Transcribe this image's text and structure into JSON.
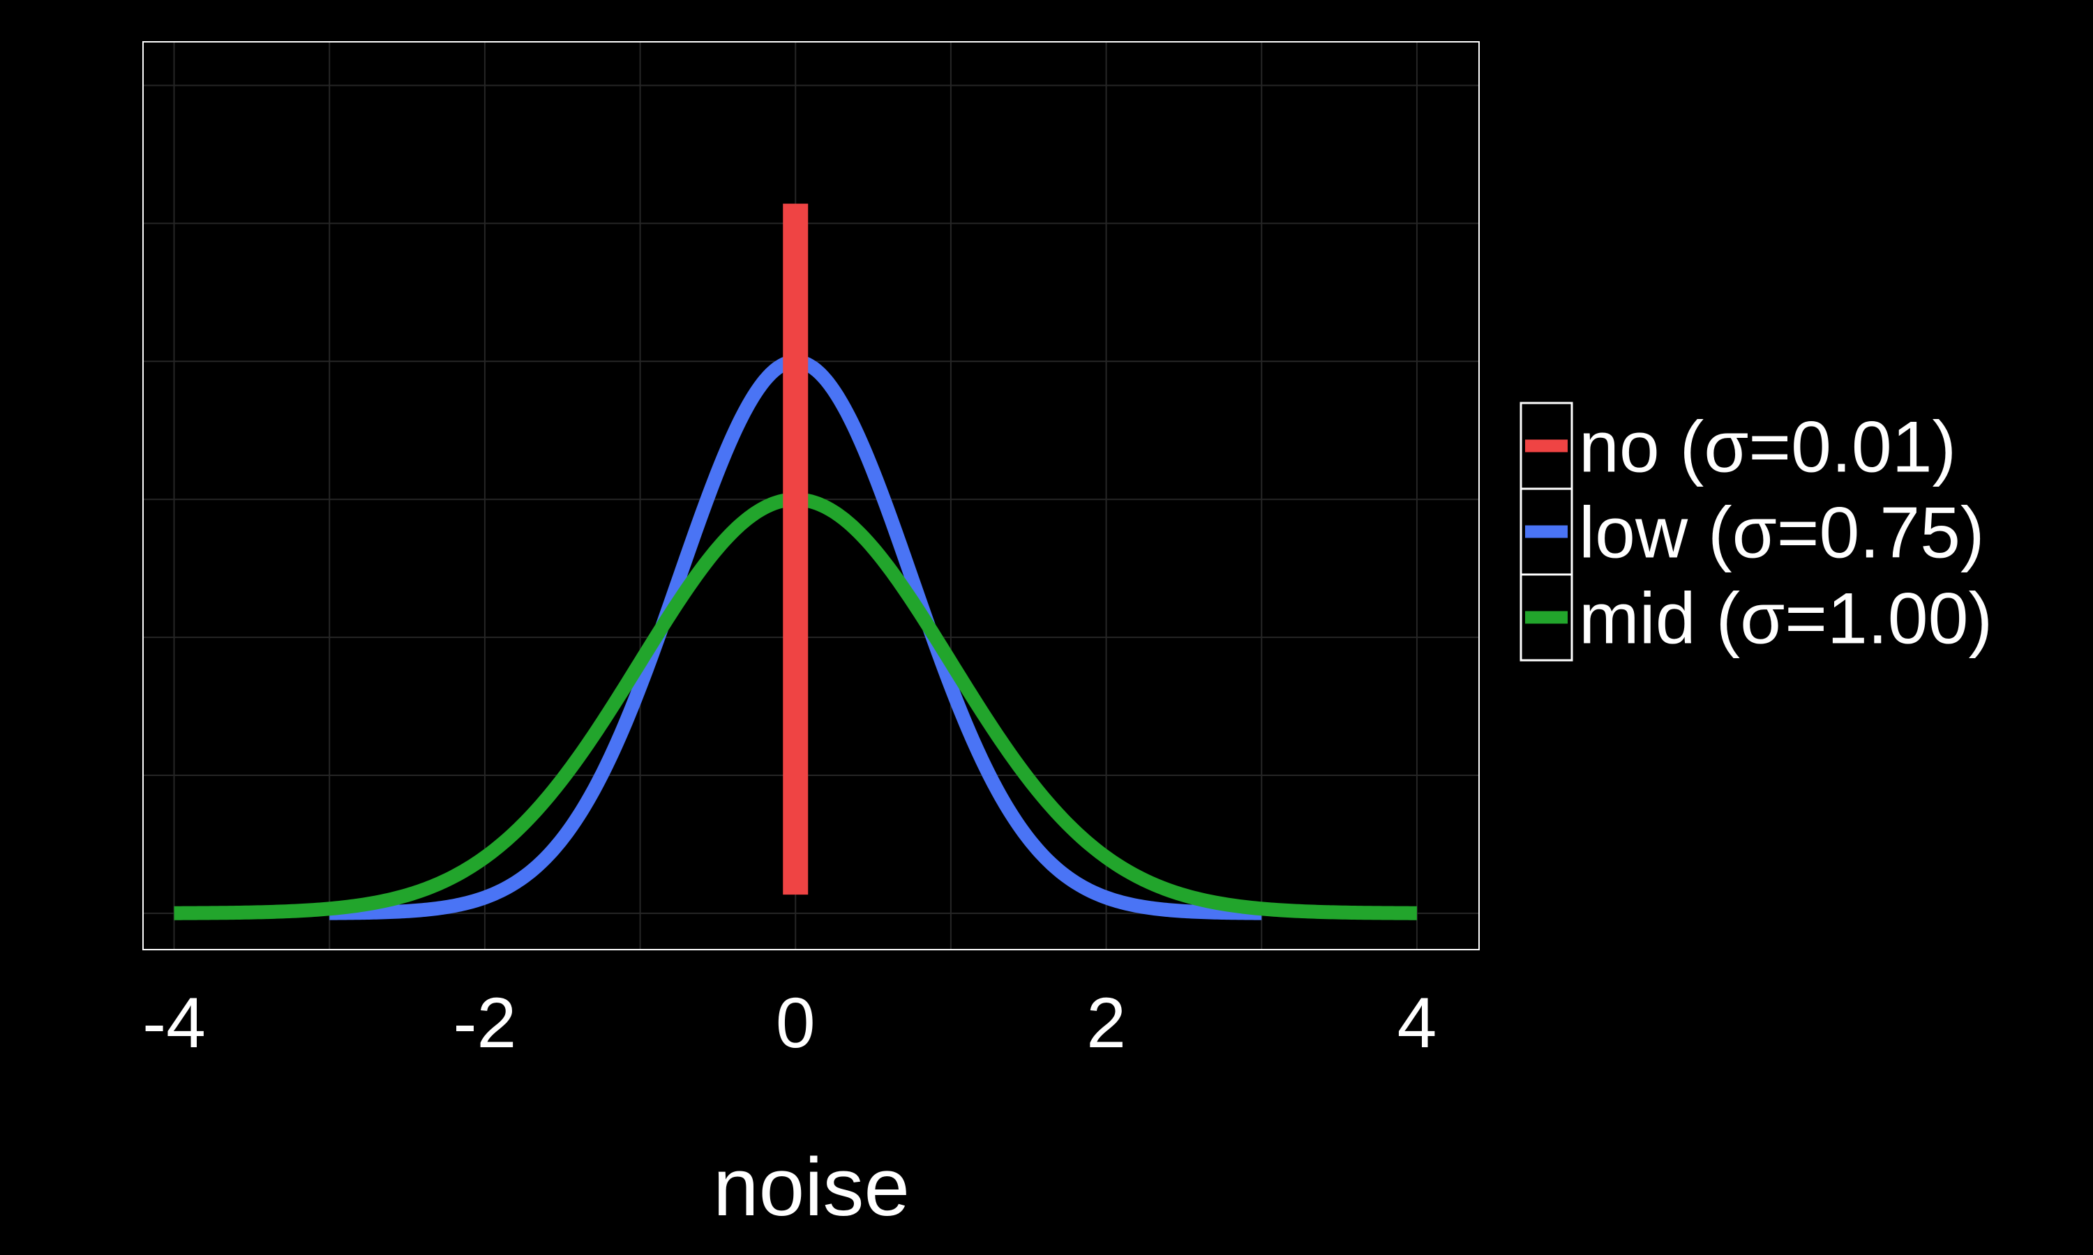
{
  "chart_data": {
    "type": "line",
    "title": "",
    "xlabel": "noise",
    "ylabel": "",
    "xlim": [
      -4.2,
      4.4
    ],
    "ylim": [
      -0.035,
      0.84
    ],
    "x_ticks": [
      -4,
      -2,
      0,
      2,
      4
    ],
    "x_tick_labels": [
      "-4",
      "-2",
      "0",
      "2",
      "4"
    ],
    "y_gridlines": [
      0,
      0.133,
      0.266,
      0.399,
      0.532,
      0.665,
      0.798
    ],
    "grid": true,
    "legend": "right",
    "series": [
      {
        "name": "no (σ=0.01)",
        "color": "#ef4444",
        "sigma": 0.01,
        "render": "spike",
        "x": [
          0,
          0
        ],
        "y": [
          0.018,
          0.684
        ]
      },
      {
        "name": "low (σ=0.75)",
        "color": "#4a74f5",
        "sigma": 0.75,
        "render": "curve",
        "x_range": [
          -3,
          3
        ],
        "peak": 0.532
      },
      {
        "name": "mid (σ=1.00)",
        "color": "#22a52c",
        "sigma": 1.0,
        "render": "curve",
        "x_range": [
          -4,
          4
        ],
        "peak": 0.399
      }
    ]
  }
}
